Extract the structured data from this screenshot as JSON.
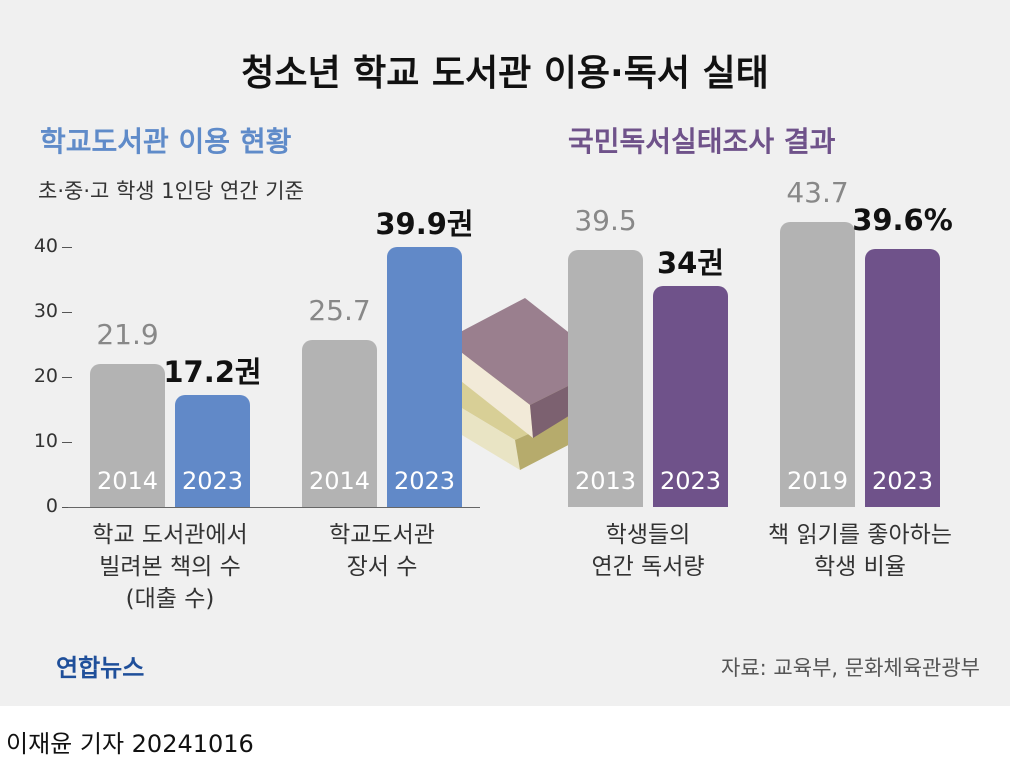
{
  "title": "청소년 학교 도서관 이용·독서 실태",
  "chart_data": [
    {
      "type": "bar",
      "title": "학교도서관 이용 현황",
      "subtitle": "초·중·고 학생 1인당 연간 기준",
      "ylim": [
        0,
        45
      ],
      "yticks": [
        0,
        10,
        20,
        30,
        40
      ],
      "groups": [
        {
          "label": "학교 도서관에서\n빌려본 책의 수\n(대출 수)",
          "bars": [
            {
              "name": "2014",
              "color": "#b3b3b3",
              "value": 21.9
            },
            {
              "name": "2023",
              "color": "#6189c8",
              "value": 17.2,
              "value_label": "17.2권"
            }
          ]
        },
        {
          "label": "학교도서관\n장서 수",
          "bars": [
            {
              "name": "2014",
              "color": "#b3b3b3",
              "value": 25.7
            },
            {
              "name": "2023",
              "color": "#6189c8",
              "value": 39.9,
              "value_label": "39.9권"
            }
          ]
        }
      ]
    },
    {
      "type": "bar",
      "title": "국민독서실태조사 결과",
      "ylim": [
        0,
        45
      ],
      "groups": [
        {
          "label": "학생들의\n연간 독서량",
          "bars": [
            {
              "name": "2013",
              "color": "#b3b3b3",
              "value": 39.5
            },
            {
              "name": "2023",
              "color": "#6f528a",
              "value": 34,
              "value_label": "34권"
            }
          ]
        },
        {
          "label": "책 읽기를 좋아하는\n학생 비율",
          "bars": [
            {
              "name": "2019",
              "color": "#b3b3b3",
              "value": 43.7
            },
            {
              "name": "2023",
              "color": "#6f528a",
              "value": 39.6,
              "value_label": "39.6%"
            }
          ]
        }
      ]
    }
  ],
  "logo": "연합뉴스",
  "source": "자료: 교육부, 문화체육관광부",
  "byline": "이재윤 기자 20241016"
}
